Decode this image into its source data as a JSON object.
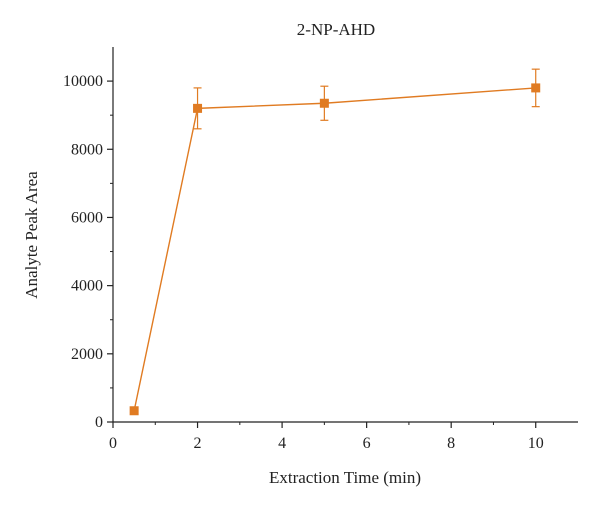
{
  "chart_data": {
    "type": "line",
    "title": "2-NP-AHD",
    "xlabel": "Extraction Time (min)",
    "ylabel": "Analyte Peak Area",
    "xlim": [
      0,
      11
    ],
    "ylim": [
      0,
      11000
    ],
    "x_ticks": [
      0,
      2,
      4,
      6,
      8,
      10
    ],
    "y_ticks": [
      0,
      2000,
      4000,
      6000,
      8000,
      10000
    ],
    "grid": false,
    "legend": "none",
    "series": [
      {
        "x": [
          0.5,
          2,
          5,
          10
        ],
        "y": [
          330,
          9200,
          9350,
          9800
        ],
        "error": [
          0,
          600,
          500,
          550
        ],
        "color": "#E07B22",
        "marker": "square"
      }
    ]
  }
}
